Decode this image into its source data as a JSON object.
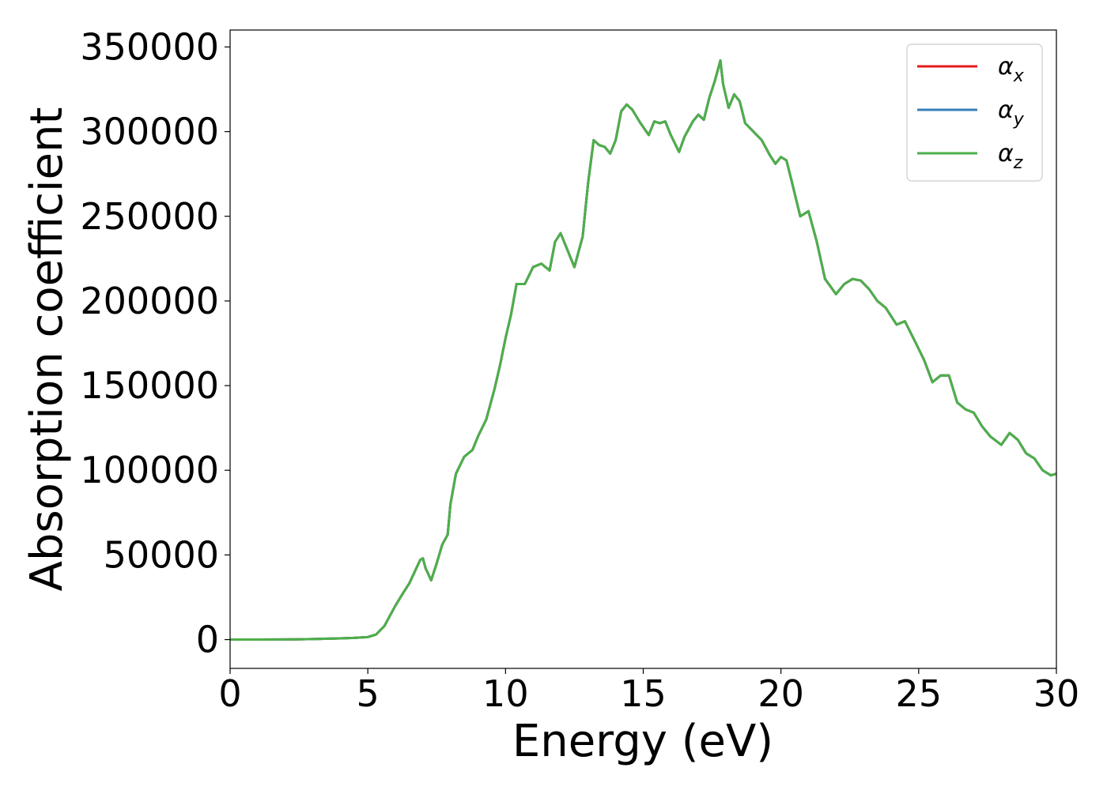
{
  "chart_data": {
    "type": "line",
    "title": "",
    "xlabel": "Energy (eV)",
    "ylabel": "Absorption coefficient",
    "xlim": [
      0,
      30
    ],
    "ylim": [
      -17000,
      360000
    ],
    "x_ticks": [
      0,
      5,
      10,
      15,
      20,
      25,
      30
    ],
    "x_tick_labels": [
      "0",
      "5",
      "10",
      "15",
      "20",
      "25",
      "30"
    ],
    "y_ticks": [
      0,
      50000,
      100000,
      150000,
      200000,
      250000,
      300000,
      350000
    ],
    "y_tick_labels": [
      "0",
      "50000",
      "100000",
      "150000",
      "200000",
      "250000",
      "300000",
      "350000"
    ],
    "grid": false,
    "legend": {
      "position": "top-right"
    },
    "x": [
      0,
      1,
      2,
      3,
      4,
      4.5,
      5,
      5.3,
      5.6,
      6.0,
      6.3,
      6.5,
      6.7,
      6.9,
      7.0,
      7.1,
      7.3,
      7.5,
      7.7,
      7.9,
      8.0,
      8.2,
      8.5,
      8.8,
      9.0,
      9.3,
      9.6,
      9.8,
      10.0,
      10.2,
      10.4,
      10.7,
      11.0,
      11.3,
      11.6,
      11.8,
      12.0,
      12.2,
      12.5,
      12.8,
      13.0,
      13.2,
      13.4,
      13.6,
      13.8,
      14.0,
      14.2,
      14.4,
      14.6,
      14.9,
      15.2,
      15.4,
      15.6,
      15.8,
      16.0,
      16.3,
      16.5,
      16.8,
      17.0,
      17.2,
      17.4,
      17.6,
      17.8,
      17.9,
      18.1,
      18.3,
      18.5,
      18.7,
      19.0,
      19.3,
      19.6,
      19.8,
      20.0,
      20.2,
      20.4,
      20.7,
      21.0,
      21.3,
      21.6,
      22.0,
      22.3,
      22.6,
      22.9,
      23.2,
      23.5,
      23.8,
      24.2,
      24.5,
      24.9,
      25.2,
      25.5,
      25.8,
      26.1,
      26.4,
      26.7,
      27.0,
      27.3,
      27.6,
      28.0,
      28.3,
      28.6,
      28.9,
      29.2,
      29.5,
      29.8,
      30.0
    ],
    "series": [
      {
        "name": "αx",
        "label_base": "α",
        "label_sub": "x",
        "color": "#e41a1c",
        "values": [
          0,
          0,
          100,
          300,
          700,
          1000,
          1500,
          3000,
          8000,
          20000,
          28000,
          33000,
          40000,
          47000,
          48000,
          42000,
          35000,
          45000,
          56000,
          62000,
          80000,
          98000,
          108000,
          112000,
          120000,
          130000,
          148000,
          162000,
          178000,
          192000,
          210000,
          210000,
          220000,
          222000,
          218000,
          235000,
          240000,
          232000,
          220000,
          238000,
          270000,
          295000,
          292000,
          291000,
          287000,
          295000,
          312000,
          316000,
          313000,
          305000,
          298000,
          306000,
          305000,
          306000,
          298000,
          288000,
          297000,
          306000,
          310000,
          307000,
          320000,
          330000,
          342000,
          328000,
          314000,
          322000,
          318000,
          305000,
          300000,
          295000,
          286000,
          281000,
          285000,
          283000,
          270000,
          250000,
          253000,
          235000,
          213000,
          204000,
          210000,
          213000,
          212000,
          207000,
          200000,
          196000,
          186000,
          188000,
          175000,
          165000,
          152000,
          156000,
          156000,
          140000,
          136000,
          134000,
          126000,
          120000,
          115000,
          122000,
          118000,
          110000,
          107000,
          100000,
          97000,
          98000
        ]
      },
      {
        "name": "αy",
        "label_base": "α",
        "label_sub": "y",
        "color": "#377eb8",
        "values": [
          0,
          0,
          100,
          300,
          700,
          1000,
          1500,
          3000,
          8000,
          20000,
          28000,
          33000,
          40000,
          47000,
          48000,
          42000,
          35000,
          45000,
          56000,
          62000,
          80000,
          98000,
          108000,
          112000,
          120000,
          130000,
          148000,
          162000,
          178000,
          192000,
          210000,
          210000,
          220000,
          222000,
          218000,
          235000,
          240000,
          232000,
          220000,
          238000,
          270000,
          295000,
          292000,
          291000,
          287000,
          295000,
          312000,
          316000,
          313000,
          305000,
          298000,
          306000,
          305000,
          306000,
          298000,
          288000,
          297000,
          306000,
          310000,
          307000,
          320000,
          330000,
          342000,
          328000,
          314000,
          322000,
          318000,
          305000,
          300000,
          295000,
          286000,
          281000,
          285000,
          283000,
          270000,
          250000,
          253000,
          235000,
          213000,
          204000,
          210000,
          213000,
          212000,
          207000,
          200000,
          196000,
          186000,
          188000,
          175000,
          165000,
          152000,
          156000,
          156000,
          140000,
          136000,
          134000,
          126000,
          120000,
          115000,
          122000,
          118000,
          110000,
          107000,
          100000,
          97000,
          98000
        ]
      },
      {
        "name": "αz",
        "label_base": "α",
        "label_sub": "z",
        "color": "#4daf4a",
        "values": [
          0,
          0,
          100,
          300,
          700,
          1000,
          1500,
          3000,
          8000,
          20000,
          28000,
          33000,
          40000,
          47000,
          48000,
          42000,
          35000,
          45000,
          56000,
          62000,
          80000,
          98000,
          108000,
          112000,
          120000,
          130000,
          148000,
          162000,
          178000,
          192000,
          210000,
          210000,
          220000,
          222000,
          218000,
          235000,
          240000,
          232000,
          220000,
          238000,
          270000,
          295000,
          292000,
          291000,
          287000,
          295000,
          312000,
          316000,
          313000,
          305000,
          298000,
          306000,
          305000,
          306000,
          298000,
          288000,
          297000,
          306000,
          310000,
          307000,
          320000,
          330000,
          342000,
          328000,
          314000,
          322000,
          318000,
          305000,
          300000,
          295000,
          286000,
          281000,
          285000,
          283000,
          270000,
          250000,
          253000,
          235000,
          213000,
          204000,
          210000,
          213000,
          212000,
          207000,
          200000,
          196000,
          186000,
          188000,
          175000,
          165000,
          152000,
          156000,
          156000,
          140000,
          136000,
          134000,
          126000,
          120000,
          115000,
          122000,
          118000,
          110000,
          107000,
          100000,
          97000,
          98000
        ]
      }
    ]
  }
}
